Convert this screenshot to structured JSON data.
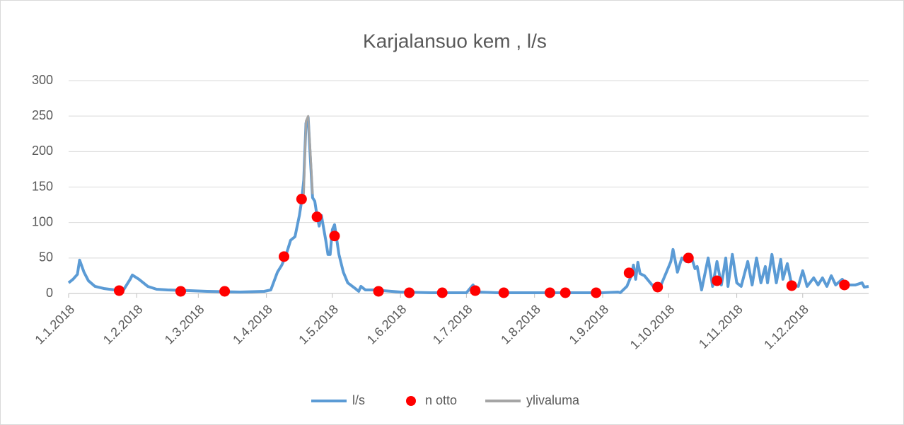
{
  "chart_data": {
    "type": "line",
    "title": "Karjalansuo kem , l/s",
    "xlim": [
      "1.1.2018",
      "31.12.2018"
    ],
    "xticks": [
      "1.1.2018",
      "1.2.2018",
      "1.3.2018",
      "1.4.2018",
      "1.5.2018",
      "1.6.2018",
      "1.7.2018",
      "1.8.2018",
      "1.9.2018",
      "1.10.2018",
      "1.11.2018",
      "1.12.2018"
    ],
    "ylim": [
      0,
      300
    ],
    "yticks": [
      0,
      50,
      100,
      150,
      200,
      250,
      300
    ],
    "grid": true,
    "legend": "bottom",
    "series": [
      {
        "name": "l/s",
        "color": "#5b9bd5",
        "kind": "line",
        "x": [
          "1.1.2018",
          "3.1.2018",
          "5.1.2018",
          "6.1.2018",
          "8.1.2018",
          "10.1.2018",
          "13.1.2018",
          "17.1.2018",
          "22.1.2018",
          "26.1.2018",
          "29.1.2018",
          "30.1.2018",
          "2.2.2018",
          "6.2.2018",
          "10.2.2018",
          "15.2.2018",
          "25.2.2018",
          "5.3.2018",
          "20.3.2018",
          "31.3.2018",
          "3.4.2018",
          "6.4.2018",
          "8.4.2018",
          "10.4.2018",
          "12.4.2018",
          "14.4.2018",
          "16.4.2018",
          "17.4.2018",
          "18.4.2018",
          "19.4.2018",
          "20.4.2018",
          "21.4.2018",
          "22.4.2018",
          "23.4.2018",
          "24.4.2018",
          "25.4.2018",
          "26.4.2018",
          "28.4.2018",
          "29.4.2018",
          "30.4.2018",
          "1.5.2018",
          "2.5.2018",
          "4.5.2018",
          "6.5.2018",
          "8.5.2018",
          "11.5.2018",
          "13.5.2018",
          "14.5.2018",
          "16.5.2018",
          "20.5.2018",
          "1.6.2018",
          "15.6.2018",
          "1.7.2018",
          "4.7.2018",
          "6.7.2018",
          "15.7.2018",
          "1.8.2018",
          "1.9.2018",
          "8.9.2018",
          "9.9.2018",
          "12.9.2018",
          "14.9.2018",
          "15.9.2018",
          "16.9.2018",
          "17.9.2018",
          "18.9.2018",
          "20.9.2018",
          "24.9.2018",
          "27.9.2018",
          "30.9.2018",
          "2.10.2018",
          "3.10.2018",
          "5.10.2018",
          "7.10.2018",
          "9.10.2018",
          "11.10.2018",
          "13.10.2018",
          "14.10.2018",
          "16.10.2018",
          "19.10.2018",
          "21.10.2018",
          "23.10.2018",
          "25.10.2018",
          "27.10.2018",
          "28.10.2018",
          "30.10.2018",
          "1.11.2018",
          "3.11.2018",
          "6.11.2018",
          "8.11.2018",
          "10.11.2018",
          "12.11.2018",
          "14.11.2018",
          "15.11.2018",
          "17.11.2018",
          "19.11.2018",
          "21.11.2018",
          "22.11.2018",
          "24.11.2018",
          "26.11.2018",
          "29.11.2018",
          "1.12.2018",
          "3.12.2018",
          "6.12.2018",
          "8.12.2018",
          "10.12.2018",
          "12.12.2018",
          "14.12.2018",
          "16.12.2018",
          "19.12.2018",
          "21.12.2018",
          "25.12.2018",
          "28.12.2018",
          "29.12.2018",
          "31.12.2018"
        ],
        "values": [
          15,
          20,
          27,
          47,
          30,
          18,
          10,
          7,
          5,
          5,
          20,
          26,
          20,
          10,
          6,
          5,
          4,
          3,
          2,
          3,
          5,
          30,
          40,
          55,
          75,
          80,
          110,
          130,
          160,
          240,
          248,
          190,
          135,
          130,
          110,
          95,
          110,
          75,
          55,
          55,
          90,
          97,
          55,
          30,
          15,
          8,
          3,
          10,
          5,
          5,
          2,
          1,
          1,
          12,
          2,
          1,
          1,
          1,
          2,
          1,
          10,
          25,
          40,
          20,
          44,
          28,
          25,
          10,
          8,
          30,
          45,
          62,
          30,
          50,
          45,
          55,
          35,
          38,
          5,
          50,
          10,
          45,
          12,
          50,
          10,
          55,
          15,
          10,
          45,
          12,
          50,
          15,
          38,
          15,
          55,
          15,
          48,
          20,
          42,
          12,
          10,
          32,
          10,
          22,
          12,
          22,
          10,
          25,
          12,
          20,
          12,
          12,
          15,
          9,
          10
        ]
      },
      {
        "name": "n otto",
        "color": "#ff0000",
        "kind": "dot",
        "x": [
          "24.1.2018",
          "21.2.2018",
          "13.3.2018",
          "9.4.2018",
          "17.4.2018",
          "24.4.2018",
          "2.5.2018",
          "22.5.2018",
          "5.6.2018",
          "20.6.2018",
          "5.7.2018",
          "18.7.2018",
          "8.8.2018",
          "15.8.2018",
          "29.8.2018",
          "13.9.2018",
          "26.9.2018",
          "10.10.2018",
          "23.10.2018",
          "26.11.2018",
          "20.12.2018"
        ],
        "values": [
          4,
          3,
          3,
          52,
          133,
          108,
          81,
          3,
          1,
          1,
          4,
          1,
          1,
          1,
          1,
          29,
          9,
          50,
          18,
          11,
          12
        ]
      },
      {
        "name": "ylivaluma",
        "color": "#a5a5a5",
        "kind": "line",
        "x": [
          "18.4.2018",
          "19.4.2018",
          "20.4.2018",
          "21.4.2018",
          "22.4.2018"
        ],
        "values": [
          140,
          243,
          250,
          200,
          140
        ]
      }
    ]
  }
}
